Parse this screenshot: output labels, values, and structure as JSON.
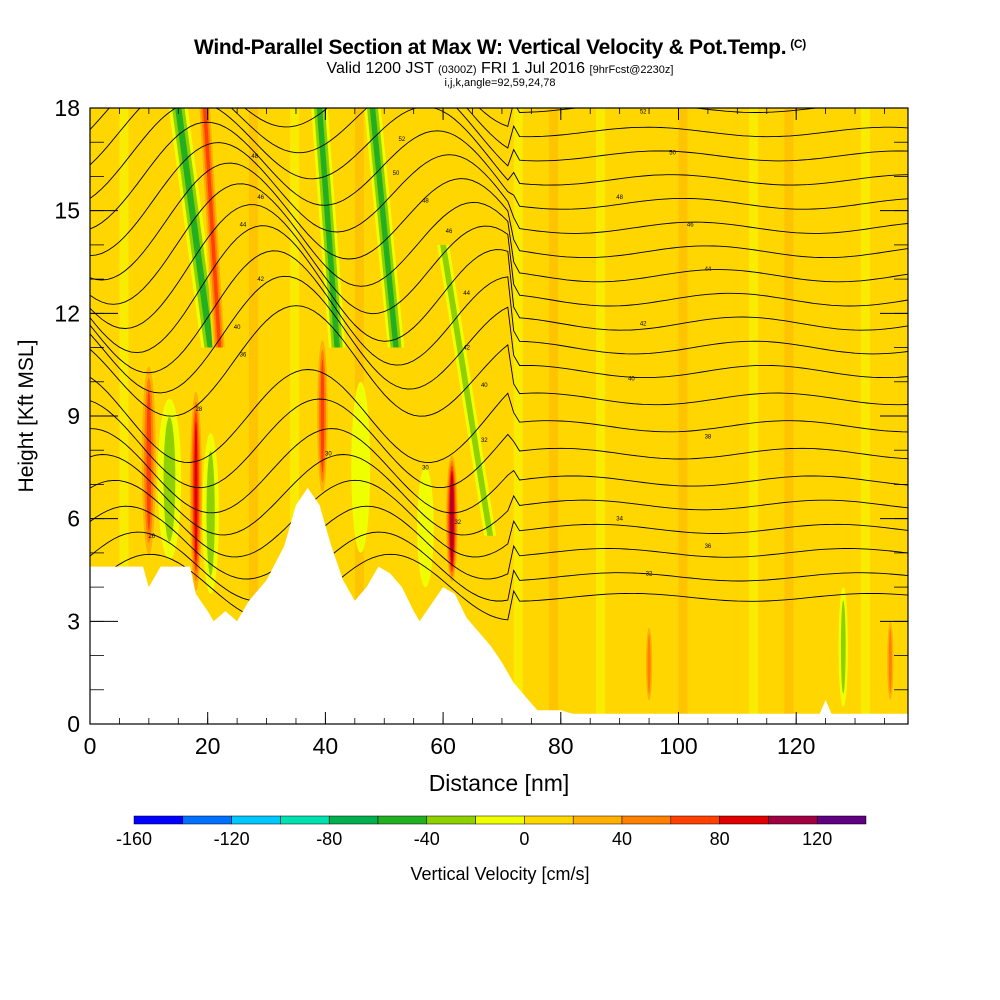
{
  "title": {
    "main": "Wind-Parallel Section at Max W: Vertical Velocity & Pot.Temp.",
    "mark": "(C)",
    "valid_prefix": "Valid 1200 JST",
    "valid_z": "(0300Z)",
    "valid_date": "FRI 1 Jul 2016",
    "forecast": "[9hrFcst@2230z]",
    "params": "i,j,k,angle=92,59,24,78"
  },
  "chart_data": {
    "type": "heatmap",
    "xlabel": "Distance [nm]",
    "ylabel": "Height [Kft MSL]",
    "xlim": [
      0,
      139
    ],
    "ylim": [
      0,
      18
    ],
    "x_ticks": [
      0,
      20,
      40,
      60,
      80,
      100,
      120
    ],
    "y_ticks": [
      0,
      3,
      6,
      9,
      12,
      15,
      18
    ],
    "colorbar": {
      "label": "Vertical Velocity [cm/s]",
      "ticks": [
        -160,
        -120,
        -80,
        -40,
        0,
        40,
        80,
        120
      ],
      "bins": [
        -160,
        -140,
        -120,
        -100,
        -80,
        -60,
        -40,
        -20,
        0,
        20,
        40,
        60,
        80,
        100,
        120,
        140
      ],
      "colors": [
        "#0000ff",
        "#0070ff",
        "#00c8ff",
        "#00e0b0",
        "#00b050",
        "#22b022",
        "#8ed000",
        "#f0ff00",
        "#ffd800",
        "#ffb000",
        "#ff8000",
        "#ff4000",
        "#e00000",
        "#a00040",
        "#600080"
      ]
    },
    "background_color": "#ffd600",
    "terrain": [
      {
        "x": 0,
        "h": 4.6
      },
      {
        "x": 9,
        "h": 4.6
      },
      {
        "x": 10,
        "h": 4.0
      },
      {
        "x": 12,
        "h": 4.6
      },
      {
        "x": 17,
        "h": 4.6
      },
      {
        "x": 18,
        "h": 3.8
      },
      {
        "x": 20,
        "h": 3.3
      },
      {
        "x": 21,
        "h": 3.0
      },
      {
        "x": 23,
        "h": 3.3
      },
      {
        "x": 25,
        "h": 3.0
      },
      {
        "x": 27,
        "h": 3.6
      },
      {
        "x": 30,
        "h": 4.2
      },
      {
        "x": 33,
        "h": 5.2
      },
      {
        "x": 35,
        "h": 6.4
      },
      {
        "x": 37,
        "h": 6.9
      },
      {
        "x": 39,
        "h": 6.4
      },
      {
        "x": 41,
        "h": 5.2
      },
      {
        "x": 43,
        "h": 4.2
      },
      {
        "x": 45,
        "h": 3.6
      },
      {
        "x": 47,
        "h": 4.0
      },
      {
        "x": 49,
        "h": 4.6
      },
      {
        "x": 51,
        "h": 4.4
      },
      {
        "x": 53,
        "h": 4.0
      },
      {
        "x": 55,
        "h": 3.3
      },
      {
        "x": 56,
        "h": 3.0
      },
      {
        "x": 58,
        "h": 3.5
      },
      {
        "x": 60,
        "h": 4.0
      },
      {
        "x": 62,
        "h": 3.8
      },
      {
        "x": 64,
        "h": 3.1
      },
      {
        "x": 66,
        "h": 2.7
      },
      {
        "x": 68,
        "h": 2.3
      },
      {
        "x": 70,
        "h": 1.8
      },
      {
        "x": 72,
        "h": 1.2
      },
      {
        "x": 74,
        "h": 0.8
      },
      {
        "x": 76,
        "h": 0.4
      },
      {
        "x": 80,
        "h": 0.4
      },
      {
        "x": 82,
        "h": 0.3
      },
      {
        "x": 124,
        "h": 0.3
      },
      {
        "x": 125,
        "h": 0.7
      },
      {
        "x": 126,
        "h": 0.3
      },
      {
        "x": 139,
        "h": 0.3
      }
    ],
    "features": [
      {
        "type": "updraft",
        "x": 10,
        "y_bottom": 4.6,
        "y_top": 10.8,
        "width": 1.6,
        "w_max": 90
      },
      {
        "type": "downdraft",
        "x": 13.5,
        "y_bottom": 4.8,
        "y_top": 9.5,
        "width": 2.0,
        "w_min": -45
      },
      {
        "type": "updraft",
        "x": 18,
        "y_bottom": 3.6,
        "y_top": 10.0,
        "width": 1.3,
        "w_max": 110
      },
      {
        "type": "downdraft",
        "x": 20.5,
        "y_bottom": 3.8,
        "y_top": 8.5,
        "width": 1.4,
        "w_min": -40
      },
      {
        "type": "updraft",
        "x": 39.5,
        "y_bottom": 6.5,
        "y_top": 11.5,
        "width": 1.2,
        "w_max": 90
      },
      {
        "type": "downdraft",
        "x": 46,
        "y_bottom": 5.0,
        "y_top": 10.0,
        "width": 1.6,
        "w_min": -30
      },
      {
        "type": "updraft",
        "x": 61.5,
        "y_bottom": 4.0,
        "y_top": 8.0,
        "width": 1.2,
        "w_max": 130
      },
      {
        "type": "downdraft",
        "x": 57,
        "y_bottom": 4.0,
        "y_top": 7.5,
        "width": 1.4,
        "w_min": -35
      },
      {
        "type": "tilted_downdraft",
        "x_bottom": 20.5,
        "x_top": 15,
        "y_bottom": 11.0,
        "y_top": 18.0,
        "width": 1.6,
        "w_min": -70
      },
      {
        "type": "tilted_updraft",
        "x_bottom": 22,
        "x_top": 19.5,
        "y_bottom": 11.0,
        "y_top": 18.0,
        "width": 1.2,
        "w_max": 85
      },
      {
        "type": "tilted_downdraft",
        "x_bottom": 42,
        "x_top": 39,
        "y_bottom": 11.0,
        "y_top": 18.0,
        "width": 1.4,
        "w_min": -70
      },
      {
        "type": "tilted_downdraft",
        "x_bottom": 52,
        "x_top": 48,
        "y_bottom": 11.0,
        "y_top": 18.0,
        "width": 1.4,
        "w_min": -70
      },
      {
        "type": "tilted_downdraft",
        "x_bottom": 68,
        "x_top": 60,
        "y_bottom": 5.5,
        "y_top": 14.0,
        "width": 1.0,
        "w_min": -40
      },
      {
        "type": "updraft",
        "x": 95,
        "y_bottom": 0.5,
        "y_top": 3.0,
        "width": 0.8,
        "w_max": 60
      },
      {
        "type": "updraft",
        "x": 136,
        "y_bottom": 0.5,
        "y_top": 3.2,
        "width": 0.8,
        "w_max": 60
      },
      {
        "type": "downdraft",
        "x": 128,
        "y_bottom": 0.5,
        "y_top": 4.0,
        "width": 0.8,
        "w_min": -40
      }
    ],
    "theta_contour_labels": [
      {
        "x": 10.5,
        "y": 5.5,
        "text": "26"
      },
      {
        "x": 18.5,
        "y": 9.2,
        "text": "28"
      },
      {
        "x": 40.5,
        "y": 7.9,
        "text": "30"
      },
      {
        "x": 62.5,
        "y": 5.9,
        "text": "32"
      },
      {
        "x": 57,
        "y": 7.5,
        "text": "30"
      },
      {
        "x": 67,
        "y": 8.3,
        "text": "32"
      },
      {
        "x": 90,
        "y": 6.0,
        "text": "34"
      },
      {
        "x": 95,
        "y": 4.4,
        "text": "32"
      },
      {
        "x": 105,
        "y": 5.2,
        "text": "36"
      },
      {
        "x": 105,
        "y": 8.4,
        "text": "38"
      },
      {
        "x": 92,
        "y": 10.1,
        "text": "40"
      },
      {
        "x": 94,
        "y": 11.7,
        "text": "42"
      },
      {
        "x": 105,
        "y": 13.3,
        "text": "44"
      },
      {
        "x": 102,
        "y": 14.6,
        "text": "46"
      },
      {
        "x": 90,
        "y": 15.4,
        "text": "48"
      },
      {
        "x": 99,
        "y": 16.7,
        "text": "50"
      },
      {
        "x": 94,
        "y": 17.9,
        "text": "52"
      },
      {
        "x": 26,
        "y": 10.8,
        "text": "36"
      },
      {
        "x": 25,
        "y": 11.6,
        "text": "40"
      },
      {
        "x": 29,
        "y": 13.0,
        "text": "42"
      },
      {
        "x": 26,
        "y": 14.6,
        "text": "44"
      },
      {
        "x": 29,
        "y": 15.4,
        "text": "46"
      },
      {
        "x": 28,
        "y": 16.6,
        "text": "48"
      },
      {
        "x": 52,
        "y": 16.1,
        "text": "50"
      },
      {
        "x": 53,
        "y": 17.1,
        "text": "52"
      },
      {
        "x": 57,
        "y": 15.3,
        "text": "48"
      },
      {
        "x": 61,
        "y": 14.4,
        "text": "46"
      },
      {
        "x": 64,
        "y": 12.6,
        "text": "44"
      },
      {
        "x": 64,
        "y": 11.0,
        "text": "42"
      },
      {
        "x": 67,
        "y": 9.9,
        "text": "40"
      }
    ]
  }
}
